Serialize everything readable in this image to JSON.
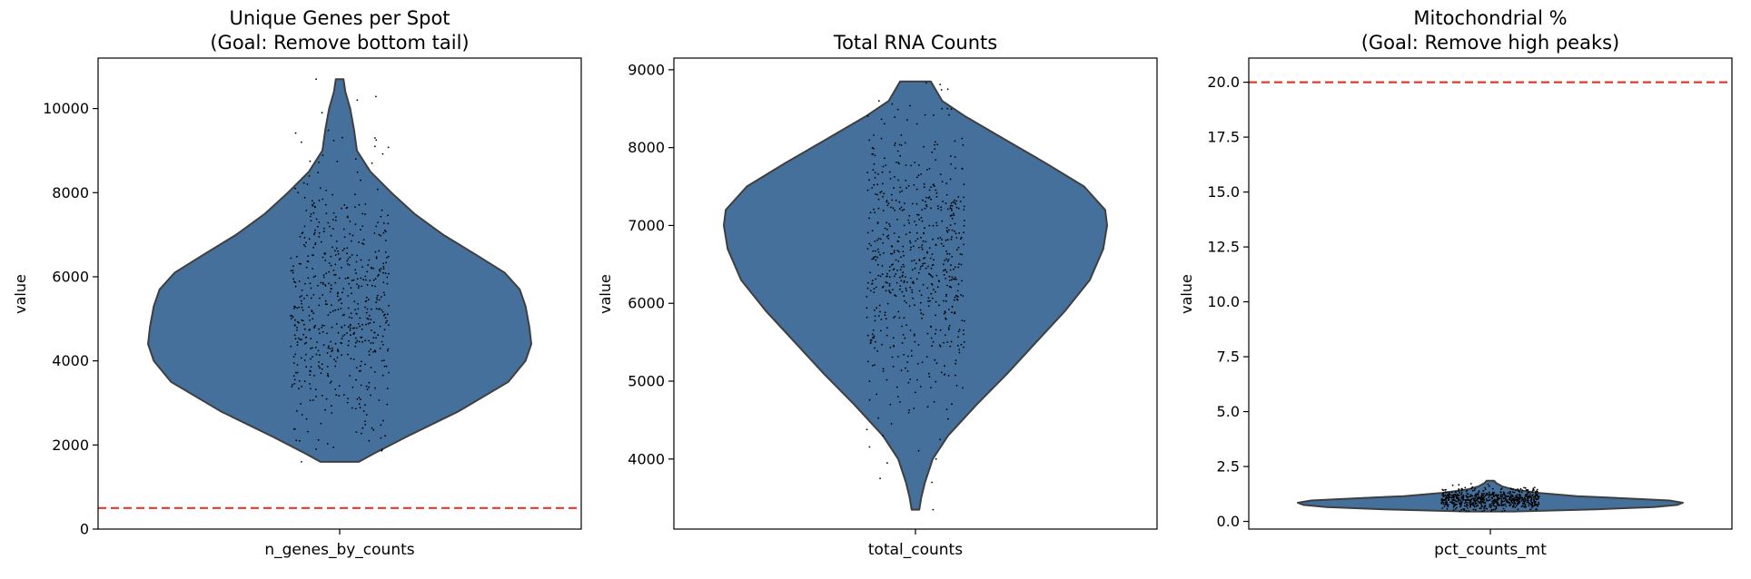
{
  "colors": {
    "violin_fill": "#44709b",
    "violin_edge": "#3f3f3f",
    "points": "#000000",
    "threshold": "#e03a2f",
    "axes": "#000000"
  },
  "chart_data": [
    {
      "type": "violin",
      "title_line1": "Unique Genes per Spot",
      "title_line2": "(Goal: Remove bottom tail)",
      "ylabel": "value",
      "category": "n_genes_by_counts",
      "ylim": [
        0,
        11200
      ],
      "yticks": [
        0,
        2000,
        4000,
        6000,
        8000,
        10000
      ],
      "ytick_labels": [
        "0",
        "2000",
        "4000",
        "6000",
        "8000",
        "10000"
      ],
      "threshold": 500,
      "range": [
        1600,
        10700
      ],
      "density": [
        [
          1600,
          0.1
        ],
        [
          1800,
          0.18
        ],
        [
          2200,
          0.35
        ],
        [
          2800,
          0.62
        ],
        [
          3500,
          0.88
        ],
        [
          4000,
          0.97
        ],
        [
          4400,
          1.0
        ],
        [
          4800,
          0.99
        ],
        [
          5300,
          0.97
        ],
        [
          5700,
          0.94
        ],
        [
          6100,
          0.86
        ],
        [
          6500,
          0.72
        ],
        [
          7000,
          0.54
        ],
        [
          7500,
          0.39
        ],
        [
          8000,
          0.27
        ],
        [
          8500,
          0.16
        ],
        [
          9000,
          0.09
        ],
        [
          9500,
          0.075
        ],
        [
          10000,
          0.055
        ],
        [
          10400,
          0.03
        ],
        [
          10700,
          0.02
        ]
      ],
      "points_n": 600,
      "points_mean": 5300,
      "points_sd": 1600,
      "outliers": [
        [
          10700,
          -0.4
        ],
        [
          10200,
          0.3
        ],
        [
          9900,
          -0.3
        ],
        [
          9200,
          -0.65
        ],
        [
          9100,
          0.6
        ],
        [
          9250,
          0.62
        ],
        [
          9300,
          0.6
        ],
        [
          8700,
          0.55
        ],
        [
          8200,
          -0.55
        ],
        [
          1600,
          -0.65
        ],
        [
          1900,
          -0.4
        ],
        [
          2100,
          0.5
        ],
        [
          2400,
          0.55
        ]
      ]
    },
    {
      "type": "violin",
      "title_line1": "",
      "title_line2": "Total RNA Counts",
      "ylabel": "value",
      "category": "total_counts",
      "ylim": [
        3100,
        9150
      ],
      "yticks": [
        4000,
        5000,
        6000,
        7000,
        8000,
        9000
      ],
      "ytick_labels": [
        "4000",
        "5000",
        "6000",
        "7000",
        "8000",
        "9000"
      ],
      "threshold": null,
      "range": [
        3350,
        8850
      ],
      "density": [
        [
          3350,
          0.02
        ],
        [
          3500,
          0.03
        ],
        [
          3700,
          0.05
        ],
        [
          4000,
          0.09
        ],
        [
          4300,
          0.17
        ],
        [
          4700,
          0.32
        ],
        [
          5100,
          0.48
        ],
        [
          5500,
          0.63
        ],
        [
          5900,
          0.78
        ],
        [
          6300,
          0.91
        ],
        [
          6700,
          0.98
        ],
        [
          7000,
          1.0
        ],
        [
          7200,
          0.99
        ],
        [
          7500,
          0.88
        ],
        [
          7800,
          0.68
        ],
        [
          8100,
          0.47
        ],
        [
          8400,
          0.26
        ],
        [
          8600,
          0.14
        ],
        [
          8850,
          0.08
        ]
      ],
      "points_n": 650,
      "points_mean": 6650,
      "points_sd": 950,
      "outliers": [
        [
          8750,
          0.55
        ],
        [
          8600,
          -0.62
        ],
        [
          8500,
          0.45
        ],
        [
          3950,
          -0.48
        ],
        [
          3750,
          -0.6
        ],
        [
          3700,
          0.28
        ],
        [
          4000,
          0.35
        ],
        [
          3350,
          0.3
        ],
        [
          4250,
          0.42
        ]
      ]
    },
    {
      "type": "violin",
      "title_line1": "Mitochondrial %",
      "title_line2": "(Goal: Remove high peaks)",
      "ylabel": "value",
      "category": "pct_counts_mt",
      "ylim": [
        -0.35,
        21.1
      ],
      "yticks": [
        0,
        2.5,
        5,
        7.5,
        10,
        12.5,
        15,
        17.5,
        20
      ],
      "ytick_labels": [
        "0.0",
        "2.5",
        "5.0",
        "7.5",
        "10.0",
        "12.5",
        "15.0",
        "17.5",
        "20.0"
      ],
      "threshold": 20,
      "range": [
        0.45,
        1.85
      ],
      "density": [
        [
          0.45,
          0.12
        ],
        [
          0.55,
          0.55
        ],
        [
          0.65,
          0.85
        ],
        [
          0.75,
          0.97
        ],
        [
          0.85,
          1.0
        ],
        [
          0.95,
          0.93
        ],
        [
          1.05,
          0.7
        ],
        [
          1.15,
          0.45
        ],
        [
          1.3,
          0.25
        ],
        [
          1.45,
          0.12
        ],
        [
          1.6,
          0.06
        ],
        [
          1.75,
          0.03
        ],
        [
          1.85,
          0.02
        ]
      ],
      "points_n": 700,
      "points_mean": 1.0,
      "points_sd": 0.25,
      "outliers": []
    }
  ]
}
